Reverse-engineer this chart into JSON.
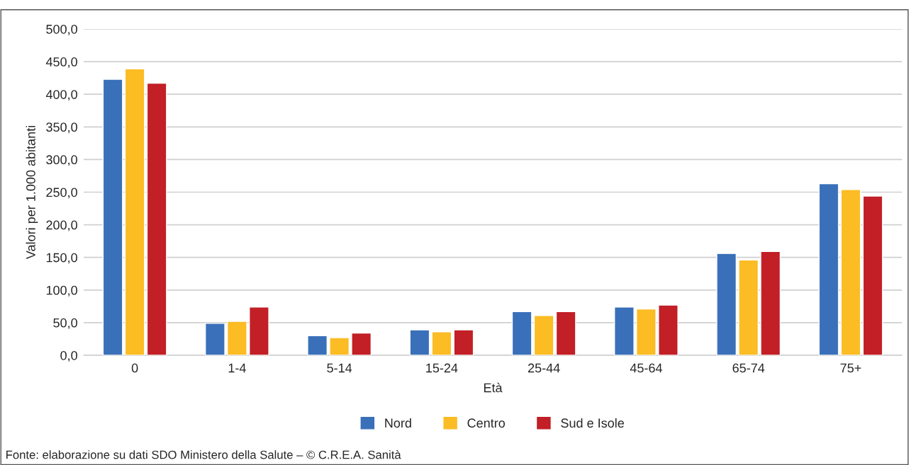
{
  "chart_data": {
    "type": "bar",
    "categories": [
      "0",
      "1-4",
      "5-14",
      "15-24",
      "25-44",
      "45-64",
      "65-74",
      "75+"
    ],
    "series": [
      {
        "name": "Nord",
        "color": "#3a70b9",
        "values": [
          423,
          49,
          30,
          39,
          67,
          74,
          156,
          263
        ]
      },
      {
        "name": "Centro",
        "color": "#fbbc24",
        "values": [
          439,
          52,
          27,
          36,
          61,
          71,
          146,
          254
        ]
      },
      {
        "name": "Sud e Isole",
        "color": "#c21f26",
        "values": [
          417,
          74,
          34,
          39,
          67,
          77,
          159,
          244
        ]
      }
    ],
    "xlabel": "Età",
    "ylabel": "Valori per 1.000 abitanti",
    "ylim": [
      0,
      500
    ],
    "yticks": [
      {
        "value": 0,
        "label": "0,0"
      },
      {
        "value": 50,
        "label": "50,0"
      },
      {
        "value": 100,
        "label": "100,0"
      },
      {
        "value": 150,
        "label": "150,0"
      },
      {
        "value": 200,
        "label": "200,0"
      },
      {
        "value": 250,
        "label": "250,0"
      },
      {
        "value": 300,
        "label": "300,0"
      },
      {
        "value": 350,
        "label": "350,0"
      },
      {
        "value": 400,
        "label": "400,0"
      },
      {
        "value": 450,
        "label": "450,0"
      },
      {
        "value": 500,
        "label": "500,0"
      }
    ],
    "grid": "y",
    "legend": "bottom",
    "annotations": [
      "Fonte: elaborazione su dati SDO Ministero della Salute – © C.R.E.A. Sanità"
    ]
  }
}
